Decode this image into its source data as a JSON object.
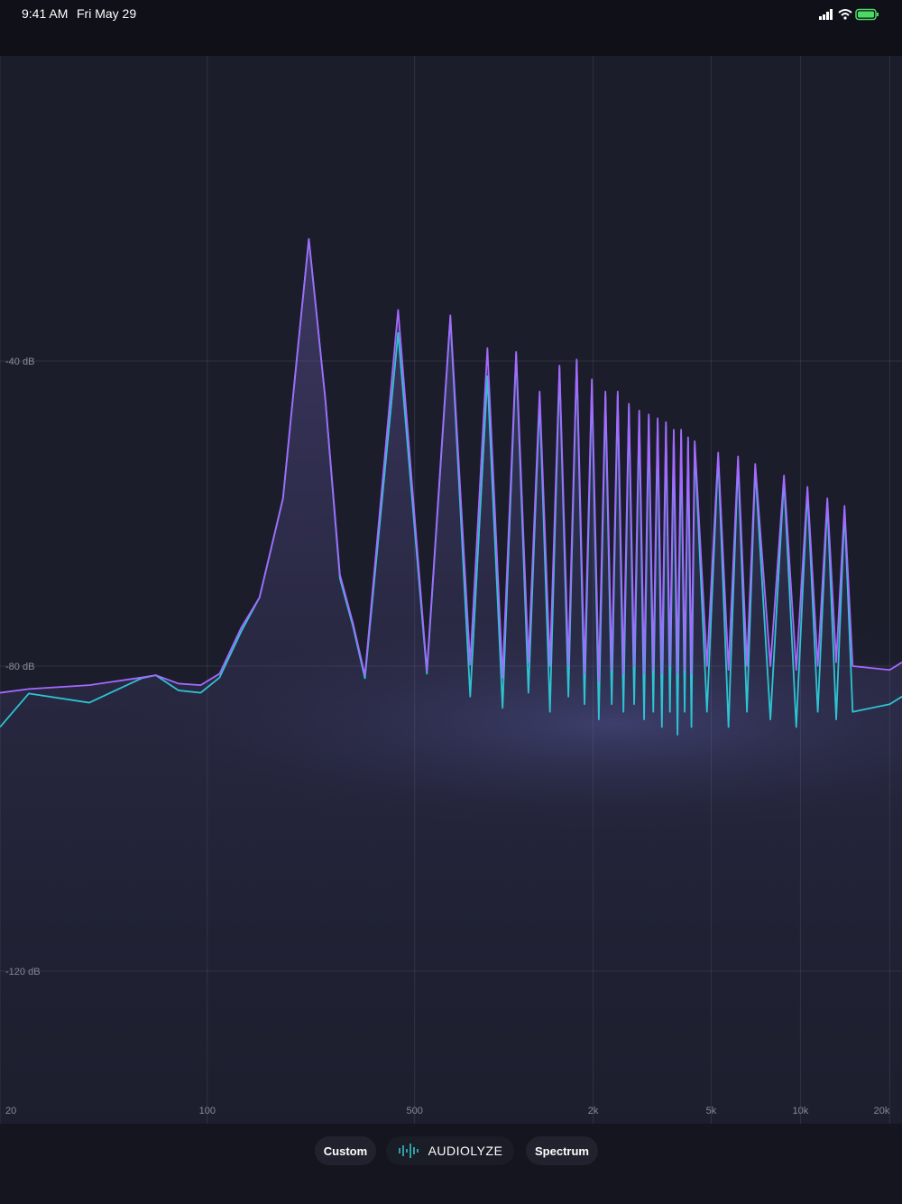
{
  "status_bar": {
    "time": "9:41 AM",
    "date": "Fri May 29"
  },
  "chart_data": {
    "type": "line",
    "log_x": true,
    "grid": true,
    "xlim": [
      20,
      22000
    ],
    "xticks": [
      20,
      100,
      500,
      {
        "value": 2000,
        "label": "2k"
      },
      {
        "value": 5000,
        "label": "5k"
      },
      {
        "value": 10000,
        "label": "10k"
      },
      {
        "value": 20000,
        "label": "20k"
      }
    ],
    "ylim": [
      -140,
      0
    ],
    "yticks": [
      {
        "value": -40,
        "label": "-40 dB"
      },
      {
        "value": -80,
        "label": "-80 dB"
      },
      {
        "value": -120,
        "label": "-120 dB"
      }
    ],
    "x": [
      20,
      25,
      40,
      60,
      67,
      80,
      95,
      110,
      130,
      150,
      180,
      200,
      220,
      250,
      280,
      310,
      340,
      440,
      550,
      660,
      770,
      880,
      990,
      1100,
      1210,
      1320,
      1430,
      1540,
      1650,
      1760,
      1870,
      1980,
      2090,
      2200,
      2310,
      2420,
      2530,
      2640,
      2750,
      2860,
      2970,
      3080,
      3190,
      3300,
      3410,
      3520,
      3630,
      3740,
      3850,
      3960,
      4070,
      4180,
      4290,
      4400,
      4840,
      5280,
      5720,
      6160,
      6600,
      7040,
      7920,
      8800,
      9680,
      10560,
      11440,
      12320,
      13200,
      14080,
      15000,
      20000,
      22000
    ],
    "series": [
      {
        "color": "#a469ff",
        "values": [
          -83.5,
          -83,
          -82.5,
          -81.5,
          -81.2,
          -82.3,
          -82.5,
          -81,
          -75,
          -71,
          -58,
          -40,
          -24,
          -45,
          -68,
          -74.4,
          -81.2,
          -33.3,
          -80.6,
          -34,
          -79.8,
          -38.3,
          -81.5,
          -38.8,
          -79.5,
          -44,
          -80,
          -40.6,
          -80,
          -39.8,
          -81,
          -42.4,
          -82,
          -44,
          -80.5,
          -44,
          -81,
          -45.6,
          -80,
          -46.5,
          -81,
          -47,
          -80.5,
          -47.5,
          -81,
          -48,
          -80,
          -49,
          -81,
          -49,
          -80.5,
          -50,
          -81,
          -50.5,
          -80,
          -52,
          -80.5,
          -52.5,
          -80,
          -53.5,
          -80,
          -55,
          -80.5,
          -56.5,
          -80,
          -58,
          -79.5,
          -59,
          -80,
          -80.5,
          -79.5
        ]
      },
      {
        "color": "#2ec3d2",
        "values": [
          -88,
          -83.6,
          -84.8,
          -81.6,
          -81.2,
          -83.2,
          -83.5,
          -81.5,
          -75.5,
          -71,
          -58,
          -40,
          -24,
          -45,
          -68.5,
          -74.8,
          -81.6,
          -36.3,
          -81,
          -34.3,
          -84,
          -42,
          -85.5,
          -39,
          -83.5,
          -45,
          -86,
          -41,
          -84,
          -40,
          -85,
          -43,
          -87,
          -44.5,
          -85,
          -44.5,
          -86,
          -46,
          -85,
          -47,
          -87,
          -47.5,
          -86,
          -48,
          -88,
          -48.5,
          -86,
          -49.5,
          -89,
          -49.5,
          -86,
          -50.5,
          -88,
          -51,
          -86,
          -52.5,
          -88,
          -53,
          -86,
          -54,
          -87,
          -55.5,
          -88,
          -57,
          -86,
          -58.5,
          -87,
          -59.5,
          -86,
          -85,
          -84
        ]
      }
    ]
  },
  "toolbar": {
    "left_button": "Custom",
    "app_name": "AUDIOLYZE",
    "right_button": "Spectrum"
  }
}
